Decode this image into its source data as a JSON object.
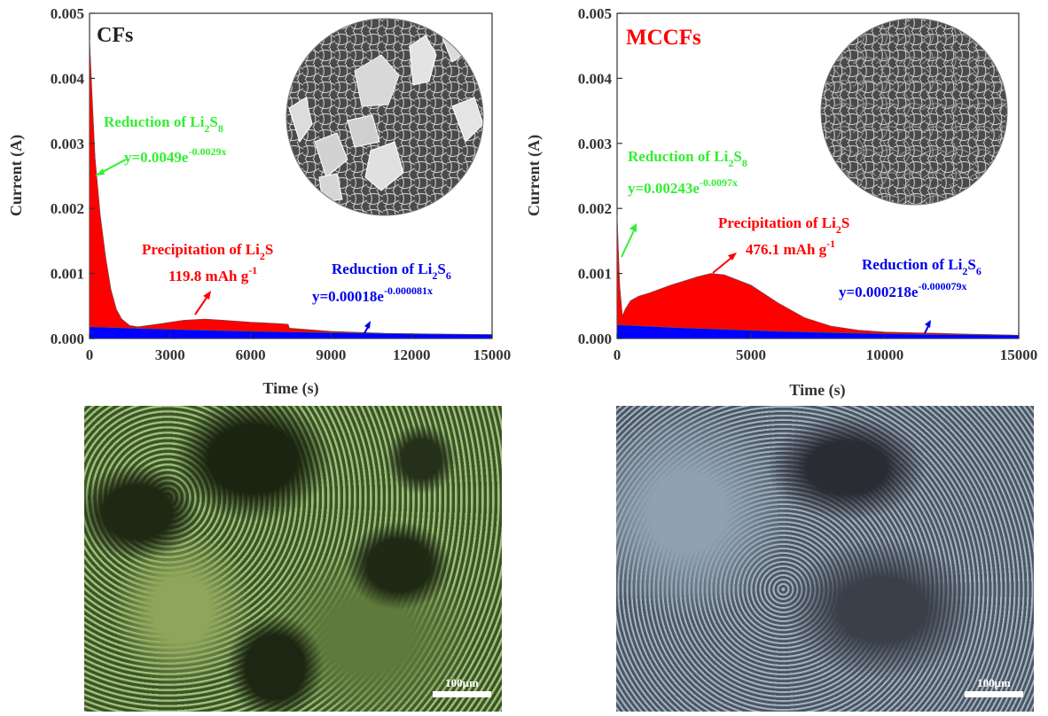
{
  "chart_data": [
    {
      "type": "area",
      "title": "CFs",
      "xlabel": "Time (s)",
      "ylabel": "Current (A)",
      "xlim": [
        0,
        15000
      ],
      "ylim": [
        0,
        0.005
      ],
      "x_ticks": [
        "0",
        "3000",
        "6000",
        "9000",
        "12000",
        "15000"
      ],
      "y_ticks": [
        "0.000",
        "0.001",
        "0.002",
        "0.003",
        "0.004",
        "0.005"
      ],
      "series": [
        {
          "color": "#00cc00",
          "x": [
            0,
            100,
            200,
            300,
            400,
            500,
            600,
            700,
            800,
            900,
            1000,
            1100,
            1200,
            1300,
            1400,
            1500
          ],
          "y": [
            0.0046,
            0.0036,
            0.0028,
            0.0021,
            0.00155,
            0.0011,
            0.0008,
            0.00058,
            0.00042,
            0.00031,
            0.00024,
            0.0002,
            0.00018,
            0.000165,
            0.00016,
            0.000155
          ]
        },
        {
          "color": "#ff0000",
          "x": [
            0,
            200,
            400,
            600,
            800,
            1000,
            1200,
            1500,
            1800,
            2500,
            3500,
            4300,
            5000,
            6000,
            7000,
            7400,
            7450,
            9000,
            11000,
            13000,
            15000
          ],
          "y": [
            0.0046,
            0.0028,
            0.0019,
            0.00125,
            0.00075,
            0.00045,
            0.0003,
            0.0002,
            0.00018,
            0.00022,
            0.00028,
            0.0003,
            0.00028,
            0.00025,
            0.00023,
            0.00022,
            0.00016,
            0.00011,
            8e-05,
            7e-05,
            6e-05
          ]
        },
        {
          "color": "#0000ff",
          "x": [
            0,
            1500,
            3000,
            6000,
            9000,
            12000,
            15000
          ],
          "y": [
            0.00018,
            0.00016,
            0.00014,
            0.00011,
            9e-05,
            7e-05,
            6e-05
          ]
        }
      ],
      "annotations": [
        {
          "text": "Reduction of Li2S8",
          "color": "#33ee33"
        },
        {
          "text": "y=0.0049e-0.0029x",
          "color": "#33ee33"
        },
        {
          "text": "Precipitation of Li2S",
          "color": "#ff0000"
        },
        {
          "text": "119.8 mAh g-1",
          "color": "#ff0000"
        },
        {
          "text": "Reduction of Li2S6",
          "color": "#0000ee"
        },
        {
          "text": "y=0.00018e-0.000081x",
          "color": "#0000ee"
        }
      ]
    },
    {
      "type": "area",
      "title": "MCCFs",
      "xlabel": "Time (s)",
      "ylabel": "Current (A)",
      "xlim": [
        0,
        15000
      ],
      "ylim": [
        0,
        0.005
      ],
      "x_ticks": [
        "0",
        "5000",
        "10000",
        "15000"
      ],
      "y_ticks": [
        "0.000",
        "0.001",
        "0.002",
        "0.003",
        "0.004",
        "0.005"
      ],
      "series": [
        {
          "color": "#00cc00",
          "x": [
            0,
            50,
            100,
            150,
            200,
            250,
            300
          ],
          "y": [
            0.0019,
            0.0012,
            0.0008,
            0.0005,
            0.00035,
            0.00028,
            0.00025
          ]
        },
        {
          "color": "#ff0000",
          "x": [
            0,
            100,
            200,
            300,
            500,
            800,
            1200,
            2000,
            3000,
            3500,
            4000,
            5000,
            6000,
            7000,
            8000,
            9000,
            10000,
            11000,
            12000,
            13000,
            14000,
            15000
          ],
          "y": [
            0.0019,
            0.0008,
            0.00035,
            0.00045,
            0.00058,
            0.00065,
            0.0007,
            0.00082,
            0.00095,
            0.001,
            0.00098,
            0.00082,
            0.00055,
            0.00032,
            0.00019,
            0.00013,
            0.0001,
            9e-05,
            8e-05,
            7e-05,
            6e-05,
            5e-05
          ]
        },
        {
          "color": "#0000ff",
          "x": [
            0,
            2000,
            4000,
            6000,
            9000,
            12000,
            15000
          ],
          "y": [
            0.00021,
            0.00017,
            0.00014,
            0.00011,
            8e-05,
            6e-05,
            5e-05
          ]
        }
      ],
      "annotations": [
        {
          "text": "Reduction of Li2S8",
          "color": "#33ee33"
        },
        {
          "text": "y=0.00243e-0.0097x",
          "color": "#33ee33"
        },
        {
          "text": "Precipitation of Li2S",
          "color": "#ff0000"
        },
        {
          "text": "476.1 mAh g-1",
          "color": "#ff0000"
        },
        {
          "text": "Reduction of Li2S6",
          "color": "#0000ee"
        },
        {
          "text": "y=0.000218e-0.000079x",
          "color": "#0000ee"
        }
      ]
    }
  ],
  "micrographs": [
    {
      "scale_label": "100μm"
    },
    {
      "scale_label": "100μm"
    }
  ]
}
